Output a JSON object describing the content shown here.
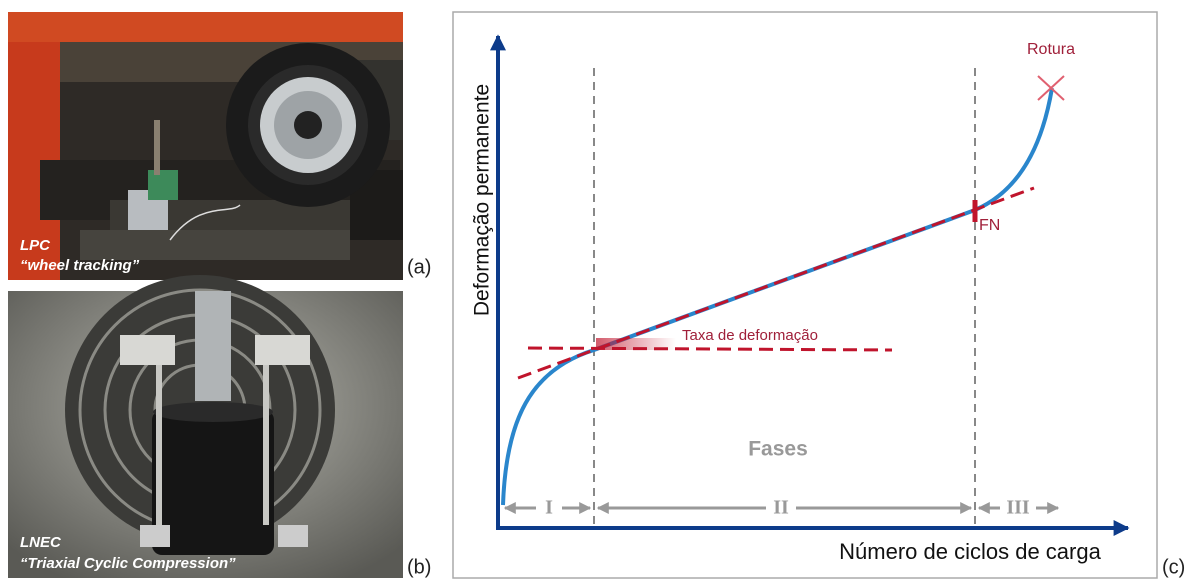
{
  "panels": {
    "a": {
      "label": "(a)",
      "caption": [
        "LPC",
        "“wheel tracking”"
      ]
    },
    "b": {
      "label": "(b)",
      "caption": [
        "LNEC",
        "“Triaxial Cyclic Compression”"
      ]
    },
    "c": {
      "label": "(c)",
      "y_axis_label": "Deformação permanente",
      "x_axis_label": "Número de ciclos de carga",
      "annotations": {
        "failure": "Rotura",
        "flow_number": "FN",
        "rate": "Taxa de deformação"
      },
      "phases_title": "Fases",
      "phases": [
        "I",
        "II",
        "III"
      ]
    }
  }
}
